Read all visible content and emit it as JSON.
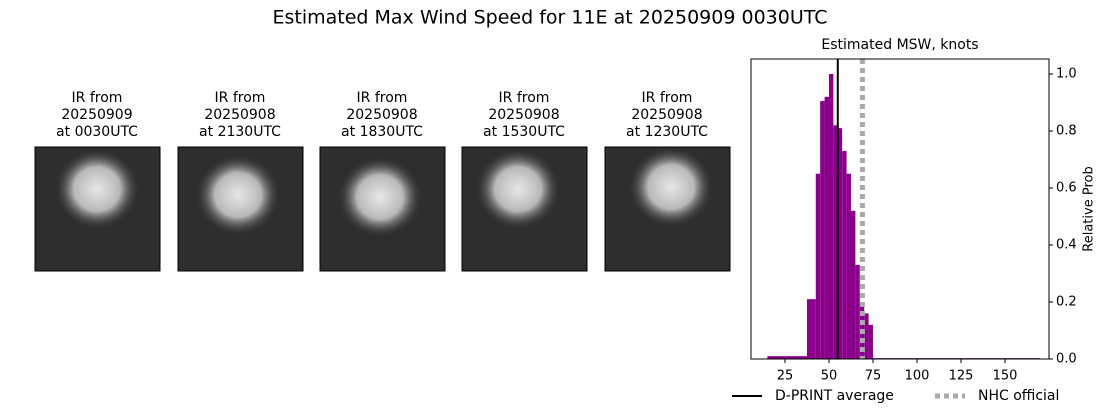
{
  "title": "Estimated Max Wind Speed for 11E at 20250909 0030UTC",
  "panels": [
    {
      "title": [
        "IR from",
        "20250909",
        "at 0030UTC"
      ]
    },
    {
      "title": [
        "IR from",
        "20250908",
        "at 2130UTC"
      ]
    },
    {
      "title": [
        "IR from",
        "20250908",
        "at 1830UTC"
      ]
    },
    {
      "title": [
        "IR from",
        "20250908",
        "at 1530UTC"
      ]
    },
    {
      "title": [
        "IR from",
        "20250908",
        "at 1230UTC"
      ]
    }
  ],
  "chart_data": {
    "type": "histogram",
    "title": "Estimated MSW, knots",
    "y_label": "Relative Prob",
    "color": "#8b008b",
    "bins": [
      15,
      37.5,
      42.5,
      45,
      47.5,
      50,
      52.5,
      55,
      57.5,
      60,
      62.5,
      65,
      67.5,
      70,
      72.5,
      75,
      170
    ],
    "values": [
      0.01,
      0.21,
      0.65,
      0.905,
      0.92,
      1.0,
      0.82,
      0.81,
      0.73,
      0.65,
      0.52,
      0.33,
      0.2,
      0.16,
      0.12,
      0.003
    ],
    "lines": [
      {
        "name": "D-PRINT average",
        "value": 55,
        "color": "#000000",
        "style": "solid"
      },
      {
        "name": "NHC official",
        "value": 69,
        "color": "#aaaaaa",
        "style": "dotted"
      }
    ],
    "xlim": [
      5.7,
      175
    ],
    "xticks": [
      25,
      50,
      75,
      100,
      125,
      150
    ],
    "ylim": [
      0,
      1.0526
    ],
    "yticks": [
      {
        "value": 0,
        "label": "0.0"
      },
      0.2,
      0.4,
      0.6,
      0.8,
      {
        "value": 1,
        "label": "1.0"
      }
    ]
  }
}
